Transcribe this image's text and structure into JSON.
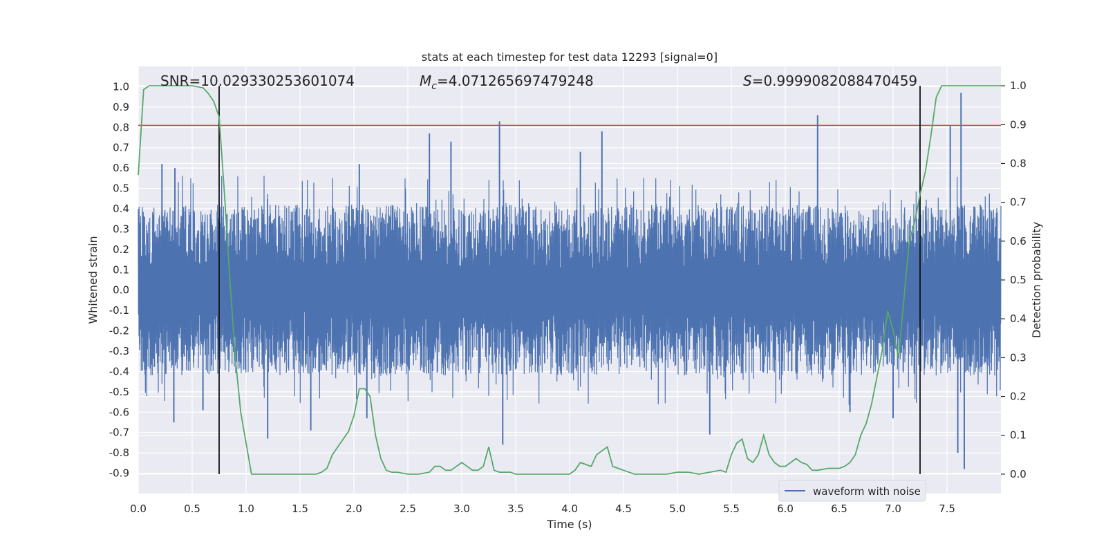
{
  "chart_data": {
    "type": "line",
    "title": "stats at each timestep for test data 12293 [signal=0]",
    "xlabel": "Time (s)",
    "ylabel_left": "Whitened strain",
    "ylabel_right": "Detection probability",
    "xlim": [
      0,
      8
    ],
    "ylim_left": [
      -1,
      1.1
    ],
    "ylim_right": [
      -0.05,
      1.05
    ],
    "x_ticks": [
      "0.0",
      "0.5",
      "1.0",
      "1.5",
      "2.0",
      "2.5",
      "3.0",
      "3.5",
      "4.0",
      "4.5",
      "5.0",
      "5.5",
      "6.0",
      "6.5",
      "7.0",
      "7.5"
    ],
    "y_ticks_left": [
      "1.0",
      "0.9",
      "0.8",
      "0.7",
      "0.6",
      "0.5",
      "0.4",
      "0.3",
      "0.2",
      "0.1",
      "0.0",
      "-0.1",
      "-0.2",
      "-0.3",
      "-0.4",
      "-0.5",
      "-0.6",
      "-0.7",
      "-0.8",
      "-0.9"
    ],
    "y_ticks_right": [
      "1.0",
      "0.9",
      "0.8",
      "0.7",
      "0.6",
      "0.5",
      "0.4",
      "0.3",
      "0.2",
      "0.1",
      "0.0"
    ],
    "annotations": {
      "snr": "SNR=10.029330253601074",
      "mc_symbol": "M",
      "mc_sub": "c",
      "mc_value": "=4.071265697479248",
      "s_symbol": "S",
      "s_value": "=0.9999082088470459"
    },
    "legend": {
      "label": "waveform with noise",
      "placement": "lower-right"
    },
    "threshold_left": 0.81,
    "vertical_lines_x": [
      0.75,
      7.25
    ],
    "grid": true,
    "series": [
      {
        "name": "waveform with noise",
        "axis": "left",
        "color": "#4c72b0",
        "envelope_abs": 0.42,
        "x_range": [
          0,
          8
        ],
        "spikes": [
          [
            0.22,
            0.62
          ],
          [
            0.33,
            -0.65
          ],
          [
            0.34,
            0.6
          ],
          [
            0.6,
            -0.59
          ],
          [
            1.2,
            -0.73
          ],
          [
            1.6,
            -0.69
          ],
          [
            2.05,
            0.62
          ],
          [
            2.12,
            -0.63
          ],
          [
            2.7,
            0.77
          ],
          [
            2.9,
            0.73
          ],
          [
            3.35,
            0.83
          ],
          [
            3.38,
            -0.76
          ],
          [
            4.3,
            0.78
          ],
          [
            4.1,
            0.68
          ],
          [
            5.3,
            -0.71
          ],
          [
            6.3,
            0.86
          ],
          [
            6.6,
            -0.6
          ],
          [
            7.0,
            -0.63
          ],
          [
            7.53,
            0.81
          ],
          [
            7.63,
            0.97
          ],
          [
            7.66,
            -0.88
          ],
          [
            7.6,
            -0.8
          ]
        ]
      },
      {
        "name": "",
        "axis": "right",
        "color": "#55a868",
        "x": [
          0.0,
          0.05,
          0.1,
          0.15,
          0.2,
          0.3,
          0.4,
          0.5,
          0.6,
          0.65,
          0.7,
          0.75,
          0.8,
          0.85,
          0.9,
          0.95,
          1.0,
          1.05,
          1.1,
          1.15,
          1.2,
          1.3,
          1.4,
          1.5,
          1.55,
          1.6,
          1.65,
          1.7,
          1.75,
          1.8,
          1.85,
          1.9,
          1.95,
          2.0,
          2.05,
          2.1,
          2.15,
          2.2,
          2.25,
          2.3,
          2.35,
          2.4,
          2.5,
          2.6,
          2.7,
          2.75,
          2.8,
          2.85,
          2.9,
          2.95,
          3.0,
          3.05,
          3.1,
          3.15,
          3.2,
          3.25,
          3.3,
          3.35,
          3.4,
          3.45,
          3.5,
          3.6,
          3.7,
          3.8,
          3.9,
          4.0,
          4.05,
          4.1,
          4.15,
          4.2,
          4.25,
          4.3,
          4.35,
          4.4,
          4.45,
          4.5,
          4.6,
          4.7,
          4.8,
          4.9,
          5.0,
          5.1,
          5.2,
          5.3,
          5.4,
          5.45,
          5.5,
          5.55,
          5.6,
          5.65,
          5.7,
          5.75,
          5.8,
          5.85,
          5.9,
          5.95,
          6.0,
          6.05,
          6.1,
          6.15,
          6.2,
          6.25,
          6.3,
          6.4,
          6.5,
          6.55,
          6.6,
          6.65,
          6.7,
          6.75,
          6.8,
          6.85,
          6.9,
          6.95,
          7.0,
          7.05,
          7.1,
          7.15,
          7.2,
          7.25,
          7.3,
          7.35,
          7.4,
          7.45,
          7.5,
          7.6,
          7.7,
          7.8,
          7.9,
          8.0
        ],
        "y": [
          0.77,
          0.99,
          1.0,
          1.0,
          1.0,
          1.0,
          1.0,
          1.0,
          0.995,
          0.98,
          0.96,
          0.92,
          0.72,
          0.5,
          0.3,
          0.16,
          0.08,
          0.0,
          0.0,
          0.0,
          0.0,
          0.0,
          0.0,
          0.0,
          0.0,
          0.0,
          0.0,
          0.005,
          0.015,
          0.05,
          0.07,
          0.09,
          0.11,
          0.15,
          0.22,
          0.22,
          0.2,
          0.1,
          0.04,
          0.01,
          0.005,
          0.005,
          0.0,
          0.0,
          0.005,
          0.02,
          0.02,
          0.01,
          0.01,
          0.02,
          0.03,
          0.02,
          0.01,
          0.01,
          0.02,
          0.07,
          0.01,
          0.005,
          0.005,
          0.005,
          0.0,
          0.0,
          0.0,
          0.0,
          0.0,
          0.0,
          0.01,
          0.03,
          0.025,
          0.02,
          0.05,
          0.06,
          0.07,
          0.02,
          0.015,
          0.01,
          0.0,
          0.0,
          0.0,
          0.0,
          0.005,
          0.005,
          0.0,
          0.005,
          0.01,
          0.005,
          0.05,
          0.08,
          0.09,
          0.04,
          0.03,
          0.05,
          0.1,
          0.05,
          0.03,
          0.02,
          0.02,
          0.03,
          0.04,
          0.03,
          0.025,
          0.01,
          0.01,
          0.015,
          0.015,
          0.02,
          0.03,
          0.05,
          0.1,
          0.13,
          0.18,
          0.25,
          0.32,
          0.42,
          0.37,
          0.3,
          0.45,
          0.6,
          0.65,
          0.72,
          0.78,
          0.87,
          0.97,
          1.0,
          1.0,
          1.0,
          1.0,
          1.0,
          1.0,
          1.0
        ]
      }
    ]
  }
}
